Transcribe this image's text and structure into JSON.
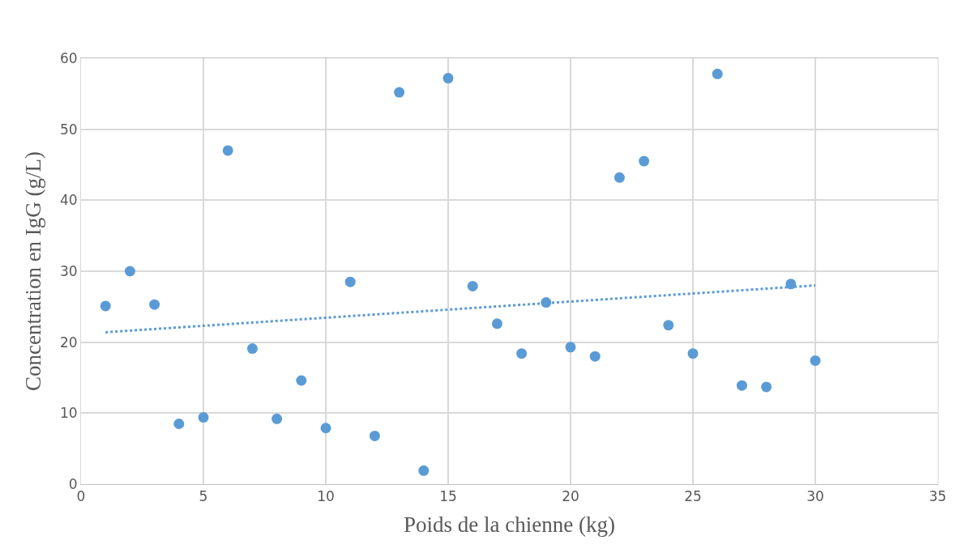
{
  "chart_data": {
    "type": "scatter",
    "xlabel": "Poids de la chienne (kg)",
    "ylabel": "Concentration en IgG (g/L)",
    "xlim": [
      0,
      35
    ],
    "xticks": [
      0,
      5,
      10,
      15,
      20,
      25,
      30,
      35
    ],
    "ylim": [
      0,
      60
    ],
    "yticks": [
      0,
      10,
      20,
      30,
      40,
      50,
      60
    ],
    "grid": true,
    "marker": "circle",
    "series": [
      {
        "color": "#5b9bd5",
        "x": [
          1,
          2,
          3,
          4,
          5,
          6,
          7,
          8,
          9,
          10,
          11,
          12,
          13,
          14,
          15,
          16,
          17,
          18,
          19,
          20,
          21,
          22,
          23,
          24,
          25,
          26,
          27,
          28,
          29,
          30
        ],
        "values": [
          25.1,
          30.0,
          25.3,
          8.5,
          9.4,
          47.0,
          19.1,
          9.2,
          14.6,
          7.9,
          28.5,
          6.8,
          55.2,
          1.9,
          57.2,
          27.9,
          22.6,
          18.4,
          25.6,
          19.3,
          18.0,
          43.2,
          45.5,
          22.4,
          18.4,
          57.8,
          13.9,
          13.7,
          28.2,
          17.4
        ]
      },
      {
        "type": "line",
        "color": "#5b9bd5",
        "line_style": "dotted",
        "marker": "none",
        "x": [
          1,
          30
        ],
        "values": [
          21.4,
          28.0
        ]
      }
    ]
  }
}
